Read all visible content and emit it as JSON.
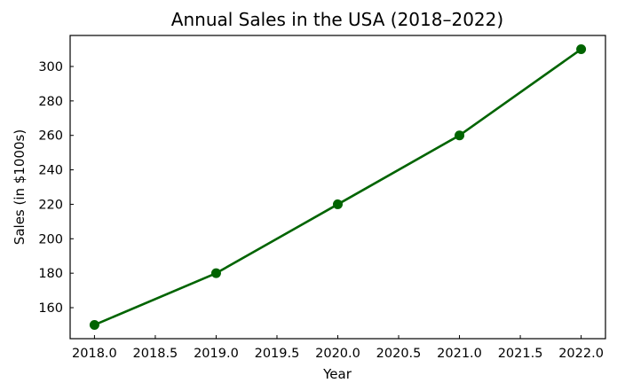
{
  "chart_data": {
    "type": "line",
    "title": "Annual Sales in the USA (2018–2022)",
    "xlabel": "Year",
    "ylabel": "Sales (in $1000s)",
    "x": [
      2018,
      2019,
      2020,
      2021,
      2022
    ],
    "series": [
      {
        "values": [
          150,
          180,
          220,
          260,
          310
        ],
        "color": "#006400"
      }
    ],
    "xlim": [
      2017.8,
      2022.2
    ],
    "ylim": [
      142,
      318
    ],
    "x_ticks": [
      2018.0,
      2018.5,
      2019.0,
      2019.5,
      2020.0,
      2020.5,
      2021.0,
      2021.5,
      2022.0
    ],
    "x_tick_labels": [
      "2018.0",
      "2018.5",
      "2019.0",
      "2019.5",
      "2020.0",
      "2020.5",
      "2021.0",
      "2021.5",
      "2022.0"
    ],
    "y_ticks": [
      160,
      180,
      200,
      220,
      240,
      260,
      280,
      300
    ],
    "y_tick_labels": [
      "160",
      "180",
      "200",
      "220",
      "240",
      "260",
      "280",
      "300"
    ],
    "grid": false,
    "legend": "none",
    "marker": "circle"
  }
}
